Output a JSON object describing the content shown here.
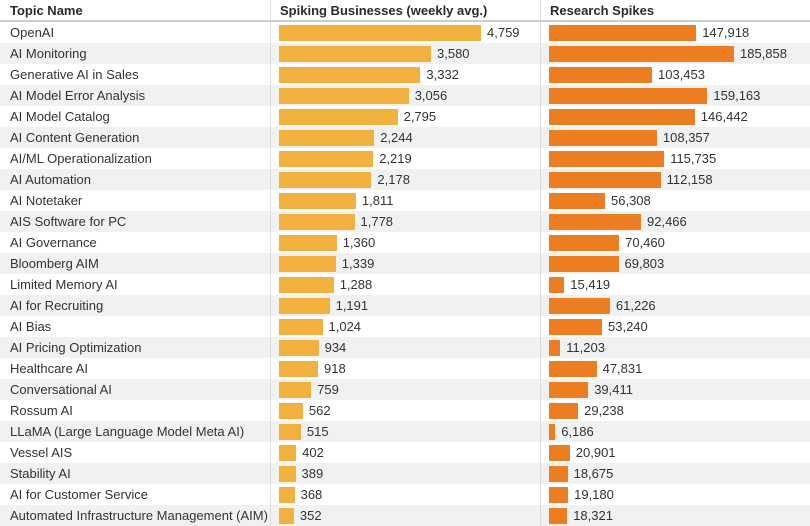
{
  "header": {
    "topic_label": "Topic Name",
    "spiking_label": "Spiking Businesses (weekly avg.)",
    "research_label": "Research Spikes"
  },
  "chart_data": {
    "type": "bar",
    "orientation": "horizontal",
    "title": "",
    "categories": [
      "OpenAI",
      "AI Monitoring",
      "Generative AI in Sales",
      "AI Model Error Analysis",
      "AI Model Catalog",
      "AI Content Generation",
      "AI/ML Operationalization",
      "AI Automation",
      "AI Notetaker",
      "AIS Software for PC",
      "AI Governance",
      "Bloomberg AIM",
      "Limited Memory AI",
      "AI for Recruiting",
      "AI Bias",
      "AI Pricing Optimization",
      "Healthcare AI",
      "Conversational AI",
      "Rossum AI",
      "LLaMA (Large Language Model Meta AI)",
      "Vessel AIS",
      "Stability AI",
      "AI for Customer Service",
      "Automated Infrastructure Management (AIM)"
    ],
    "series": [
      {
        "name": "Spiking Businesses (weekly avg.)",
        "color": "#F2B13E",
        "values": [
          4759,
          3580,
          3332,
          3056,
          2795,
          2244,
          2219,
          2178,
          1811,
          1778,
          1360,
          1339,
          1288,
          1191,
          1024,
          934,
          918,
          759,
          562,
          515,
          402,
          389,
          368,
          352
        ]
      },
      {
        "name": "Research Spikes",
        "color": "#EC7D21",
        "values": [
          147918,
          185858,
          103453,
          159163,
          146442,
          108357,
          115735,
          112158,
          56308,
          92466,
          70460,
          69803,
          15419,
          61226,
          53240,
          11203,
          47831,
          39411,
          29238,
          6186,
          20901,
          18675,
          19180,
          18321
        ]
      }
    ],
    "axis_max": {
      "spiking": 4759,
      "research": 185858
    },
    "value_label_format": "thousands-comma",
    "grid": "row-stripes",
    "legend_position": "column-headers"
  },
  "colors": {
    "spiking_bar": "#F2B13E",
    "research_bar": "#EC7D21",
    "row_stripe": "#F0F1F1",
    "header_border": "#C9CDCD",
    "column_divider": "#DCDEDE",
    "text": "#333333",
    "header_text": "#2B2B2B",
    "background": "#FFFFFF"
  }
}
